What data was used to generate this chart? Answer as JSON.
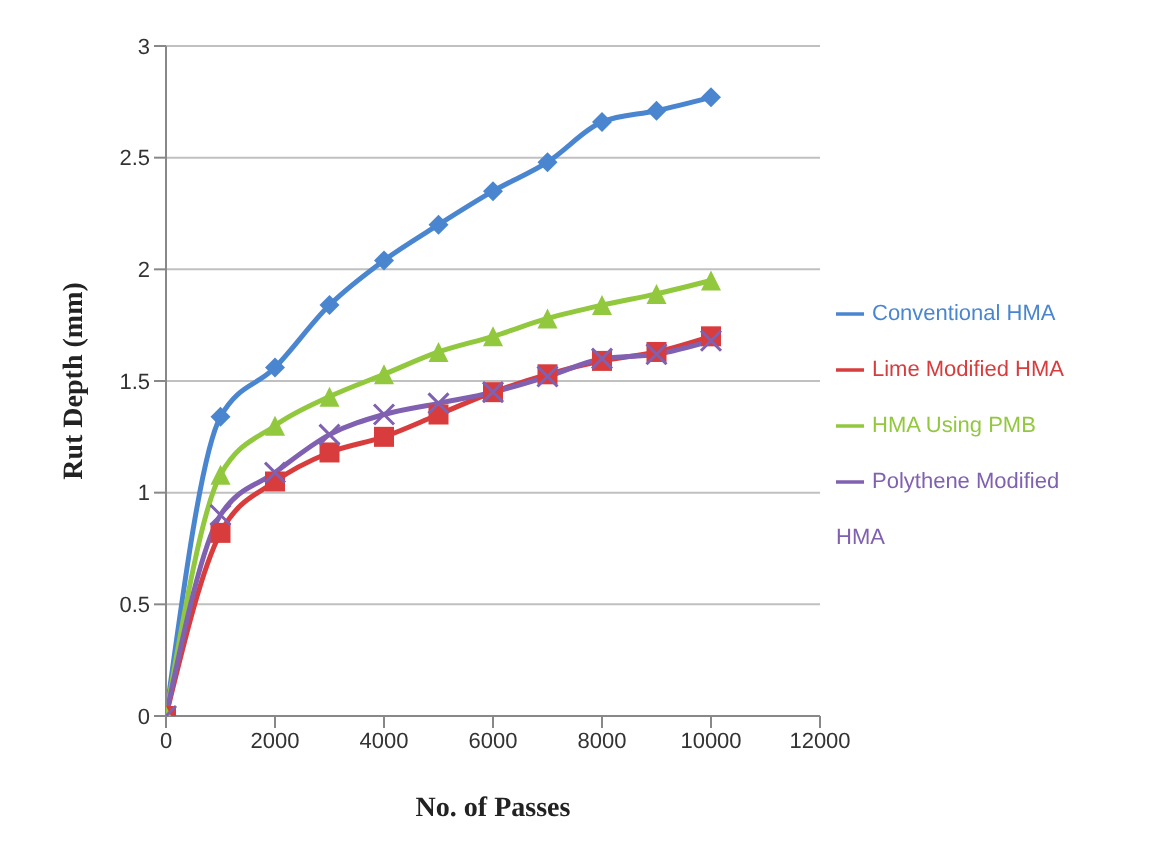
{
  "chart_data": {
    "type": "line",
    "xlabel": "No. of Passes",
    "ylabel": "Rut Depth (mm)",
    "x": [
      0,
      1000,
      2000,
      3000,
      4000,
      5000,
      6000,
      7000,
      8000,
      9000,
      10000
    ],
    "series": [
      {
        "name": "Conventional HMA",
        "color": "#4a86d0",
        "marker": "diamond",
        "values": [
          0,
          1.34,
          1.56,
          1.84,
          2.04,
          2.2,
          2.35,
          2.48,
          2.66,
          2.71,
          2.77
        ]
      },
      {
        "name": "Lime Modified HMA",
        "color": "#d83c3c",
        "marker": "square",
        "values": [
          0,
          0.82,
          1.05,
          1.18,
          1.25,
          1.35,
          1.45,
          1.53,
          1.59,
          1.63,
          1.7
        ]
      },
      {
        "name": "HMA Using  PMB",
        "color": "#92c83e",
        "marker": "triangle",
        "values": [
          0,
          1.08,
          1.3,
          1.43,
          1.53,
          1.63,
          1.7,
          1.78,
          1.84,
          1.89,
          1.95
        ]
      },
      {
        "name": "Polythene Modified HMA",
        "color": "#8060b0",
        "marker": "cross",
        "values": [
          0,
          0.9,
          1.09,
          1.26,
          1.35,
          1.4,
          1.45,
          1.52,
          1.6,
          1.62,
          1.68
        ]
      }
    ],
    "xlim": [
      0,
      12000
    ],
    "xticks": [
      0,
      2000,
      4000,
      6000,
      8000,
      10000,
      12000
    ],
    "ylim": [
      0,
      3
    ],
    "yticks": [
      0,
      0.5,
      1,
      1.5,
      2,
      2.5,
      3
    ],
    "grid": "y",
    "legend": "right",
    "line_style": "solid"
  }
}
